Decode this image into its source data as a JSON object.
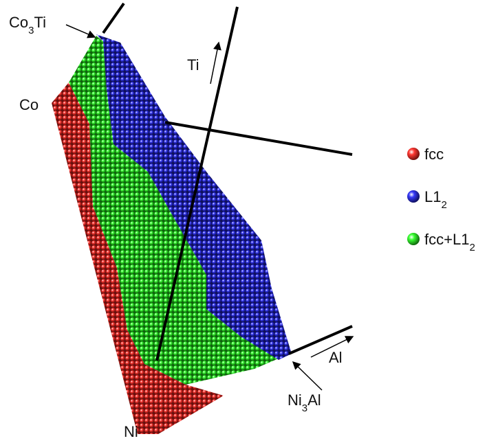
{
  "labels": {
    "co3ti": {
      "parts": [
        {
          "text": "Co"
        },
        {
          "text": "3",
          "subscript": true
        },
        {
          "text": "Ti"
        }
      ]
    },
    "co": {
      "parts": [
        {
          "text": "Co"
        }
      ]
    },
    "ti": {
      "parts": [
        {
          "text": "Ti"
        }
      ]
    },
    "ni": {
      "parts": [
        {
          "text": "Ni"
        }
      ]
    },
    "ni3al": {
      "parts": [
        {
          "text": "Ni"
        },
        {
          "text": "3",
          "subscript": true
        },
        {
          "text": "Al"
        }
      ]
    },
    "al": {
      "parts": [
        {
          "text": "Al"
        }
      ]
    }
  },
  "legend": [
    {
      "parts": [
        {
          "text": "fcc"
        }
      ],
      "color": "#e3211c"
    },
    {
      "parts": [
        {
          "text": "L1"
        },
        {
          "text": "2",
          "subscript": true
        }
      ],
      "color": "#1f22c8"
    },
    {
      "parts": [
        {
          "text": "fcc+L1"
        },
        {
          "text": "2",
          "subscript": true
        }
      ],
      "color": "#22d81c"
    }
  ]
}
